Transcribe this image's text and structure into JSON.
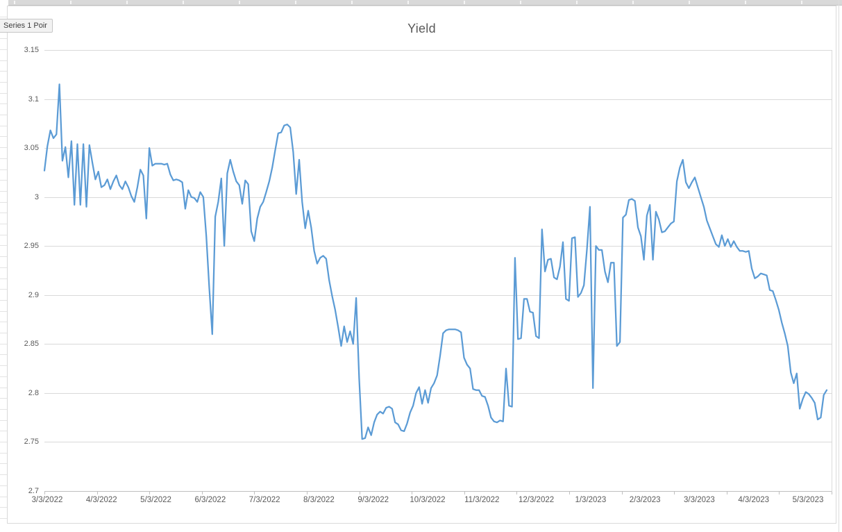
{
  "tooltip": {
    "text": "Series 1 Poir"
  },
  "chart": {
    "title": "Yield",
    "colors": {
      "line": "#5B9BD5",
      "gridline": "#d9d9d9",
      "axis_line": "#bfbfbf",
      "tick": "#bfbfbf",
      "label_text": "#595959",
      "title_text": "#595959",
      "tooltip_bg": "#f2f2f2",
      "tooltip_border": "#c6c6c6"
    }
  },
  "chart_data": {
    "type": "line",
    "title": "Yield",
    "legend": "none",
    "grid": "horizontal",
    "ylim": [
      2.7,
      3.15
    ],
    "y_ticks": [
      3.15,
      3.1,
      3.05,
      3.0,
      2.95,
      2.9,
      2.85,
      2.8,
      2.75,
      2.7
    ],
    "x_tick_labels": [
      "3/3/2022",
      "4/3/2022",
      "5/3/2022",
      "6/3/2022",
      "7/3/2022",
      "8/3/2022",
      "9/3/2022",
      "10/3/2022",
      "11/3/2022",
      "12/3/2022",
      "1/3/2023",
      "2/3/2023",
      "3/3/2023",
      "4/3/2023",
      "5/3/2023"
    ],
    "series": [
      {
        "name": "Series 1",
        "values": [
          3.027,
          3.052,
          3.068,
          3.06,
          3.064,
          3.115,
          3.037,
          3.051,
          3.02,
          3.057,
          2.992,
          3.054,
          2.992,
          3.054,
          2.99,
          3.053,
          3.035,
          3.018,
          3.026,
          3.01,
          3.012,
          3.018,
          3.008,
          3.016,
          3.022,
          3.012,
          3.008,
          3.016,
          3.01,
          3.001,
          2.995,
          3.01,
          3.028,
          3.022,
          2.978,
          3.05,
          3.032,
          3.034,
          3.034,
          3.034,
          3.033,
          3.034,
          3.023,
          3.017,
          3.018,
          3.017,
          3.015,
          2.988,
          3.007,
          3.0,
          2.999,
          2.995,
          3.005,
          3.0,
          2.96,
          2.907,
          2.86,
          2.98,
          2.995,
          3.019,
          2.95,
          3.024,
          3.038,
          3.026,
          3.016,
          3.012,
          2.993,
          3.017,
          3.013,
          2.965,
          2.955,
          2.978,
          2.99,
          2.995,
          3.005,
          3.016,
          3.03,
          3.048,
          3.065,
          3.066,
          3.073,
          3.074,
          3.071,
          3.046,
          3.003,
          3.038,
          2.995,
          2.968,
          2.986,
          2.969,
          2.945,
          2.932,
          2.938,
          2.94,
          2.937,
          2.915,
          2.899,
          2.885,
          2.867,
          2.848,
          2.868,
          2.852,
          2.863,
          2.85,
          2.897,
          2.815,
          2.753,
          2.754,
          2.765,
          2.757,
          2.77,
          2.778,
          2.781,
          2.779,
          2.785,
          2.786,
          2.784,
          2.77,
          2.768,
          2.762,
          2.761,
          2.769,
          2.78,
          2.787,
          2.8,
          2.806,
          2.789,
          2.803,
          2.79,
          2.805,
          2.81,
          2.818,
          2.838,
          2.861,
          2.864,
          2.865,
          2.865,
          2.865,
          2.864,
          2.862,
          2.836,
          2.829,
          2.825,
          2.804,
          2.803,
          2.803,
          2.797,
          2.796,
          2.787,
          2.775,
          2.771,
          2.77,
          2.772,
          2.771,
          2.825,
          2.787,
          2.786,
          2.938,
          2.855,
          2.856,
          2.896,
          2.896,
          2.883,
          2.882,
          2.858,
          2.856,
          2.967,
          2.924,
          2.936,
          2.937,
          2.918,
          2.916,
          2.929,
          2.954,
          2.896,
          2.894,
          2.958,
          2.959,
          2.898,
          2.902,
          2.91,
          2.947,
          2.99,
          2.805,
          2.95,
          2.946,
          2.946,
          2.924,
          2.913,
          2.933,
          2.933,
          2.848,
          2.852,
          2.979,
          2.982,
          2.997,
          2.998,
          2.996,
          2.969,
          2.96,
          2.936,
          2.981,
          2.992,
          2.936,
          2.985,
          2.977,
          2.964,
          2.965,
          2.969,
          2.973,
          2.975,
          3.016,
          3.03,
          3.038,
          3.015,
          3.009,
          3.015,
          3.02,
          3.01,
          3.0,
          2.99,
          2.976,
          2.968,
          2.96,
          2.952,
          2.949,
          2.961,
          2.95,
          2.957,
          2.949,
          2.955,
          2.949,
          2.945,
          2.945,
          2.944,
          2.945,
          2.927,
          2.917,
          2.919,
          2.922,
          2.921,
          2.92,
          2.905,
          2.904,
          2.895,
          2.885,
          2.872,
          2.861,
          2.848,
          2.821,
          2.81,
          2.82,
          2.784,
          2.794,
          2.801,
          2.799,
          2.795,
          2.79,
          2.773,
          2.775,
          2.798,
          2.803
        ]
      }
    ]
  }
}
